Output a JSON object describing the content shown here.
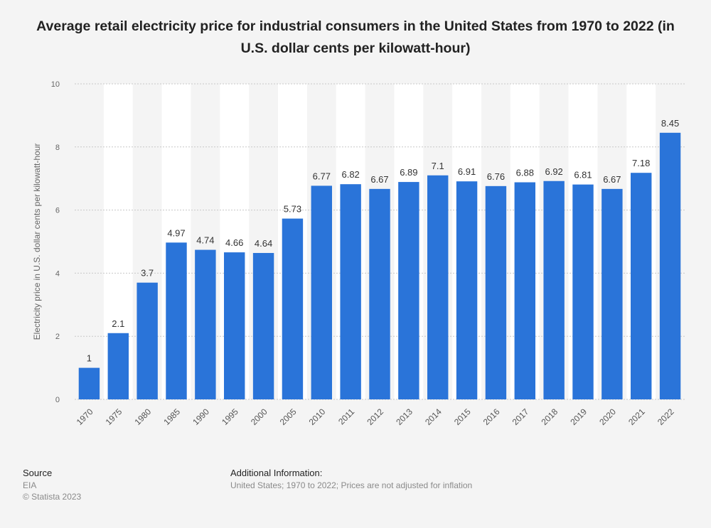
{
  "chart_data": {
    "type": "bar",
    "title": "Average retail electricity price for industrial consumers in the United States from 1970 to 2022 (in U.S. dollar cents per kilowatt-hour)",
    "xlabel": "",
    "ylabel": "Electricity price in U.S. dollar cents per kilowatt-hour",
    "ylim": [
      0,
      10
    ],
    "yticks": [
      0,
      2,
      4,
      6,
      8,
      10
    ],
    "grid": true,
    "categories": [
      "1970",
      "1975",
      "1980",
      "1985",
      "1990",
      "1995",
      "2000",
      "2005",
      "2010",
      "2011",
      "2012",
      "2013",
      "2014",
      "2015",
      "2016",
      "2017",
      "2018",
      "2019",
      "2020",
      "2021",
      "2022"
    ],
    "values": [
      1,
      2.1,
      3.7,
      4.97,
      4.74,
      4.66,
      4.64,
      5.73,
      6.77,
      6.82,
      6.67,
      6.89,
      7.1,
      6.91,
      6.76,
      6.88,
      6.92,
      6.81,
      6.67,
      7.18,
      8.45
    ],
    "data_labels": [
      "1",
      "2.1",
      "3.7",
      "4.97",
      "4.74",
      "4.66",
      "4.64",
      "5.73",
      "6.77",
      "6.82",
      "6.67",
      "6.89",
      "7.1",
      "6.91",
      "6.76",
      "6.88",
      "6.92",
      "6.81",
      "6.67",
      "7.18",
      "8.45"
    ],
    "bar_color": "#2a74d9"
  },
  "footer": {
    "source_label": "Source",
    "source_value": "EIA",
    "copyright": "© Statista 2023",
    "additional_label": "Additional Information:",
    "additional_value": "United States; 1970 to 2022; Prices are not adjusted for inflation"
  }
}
